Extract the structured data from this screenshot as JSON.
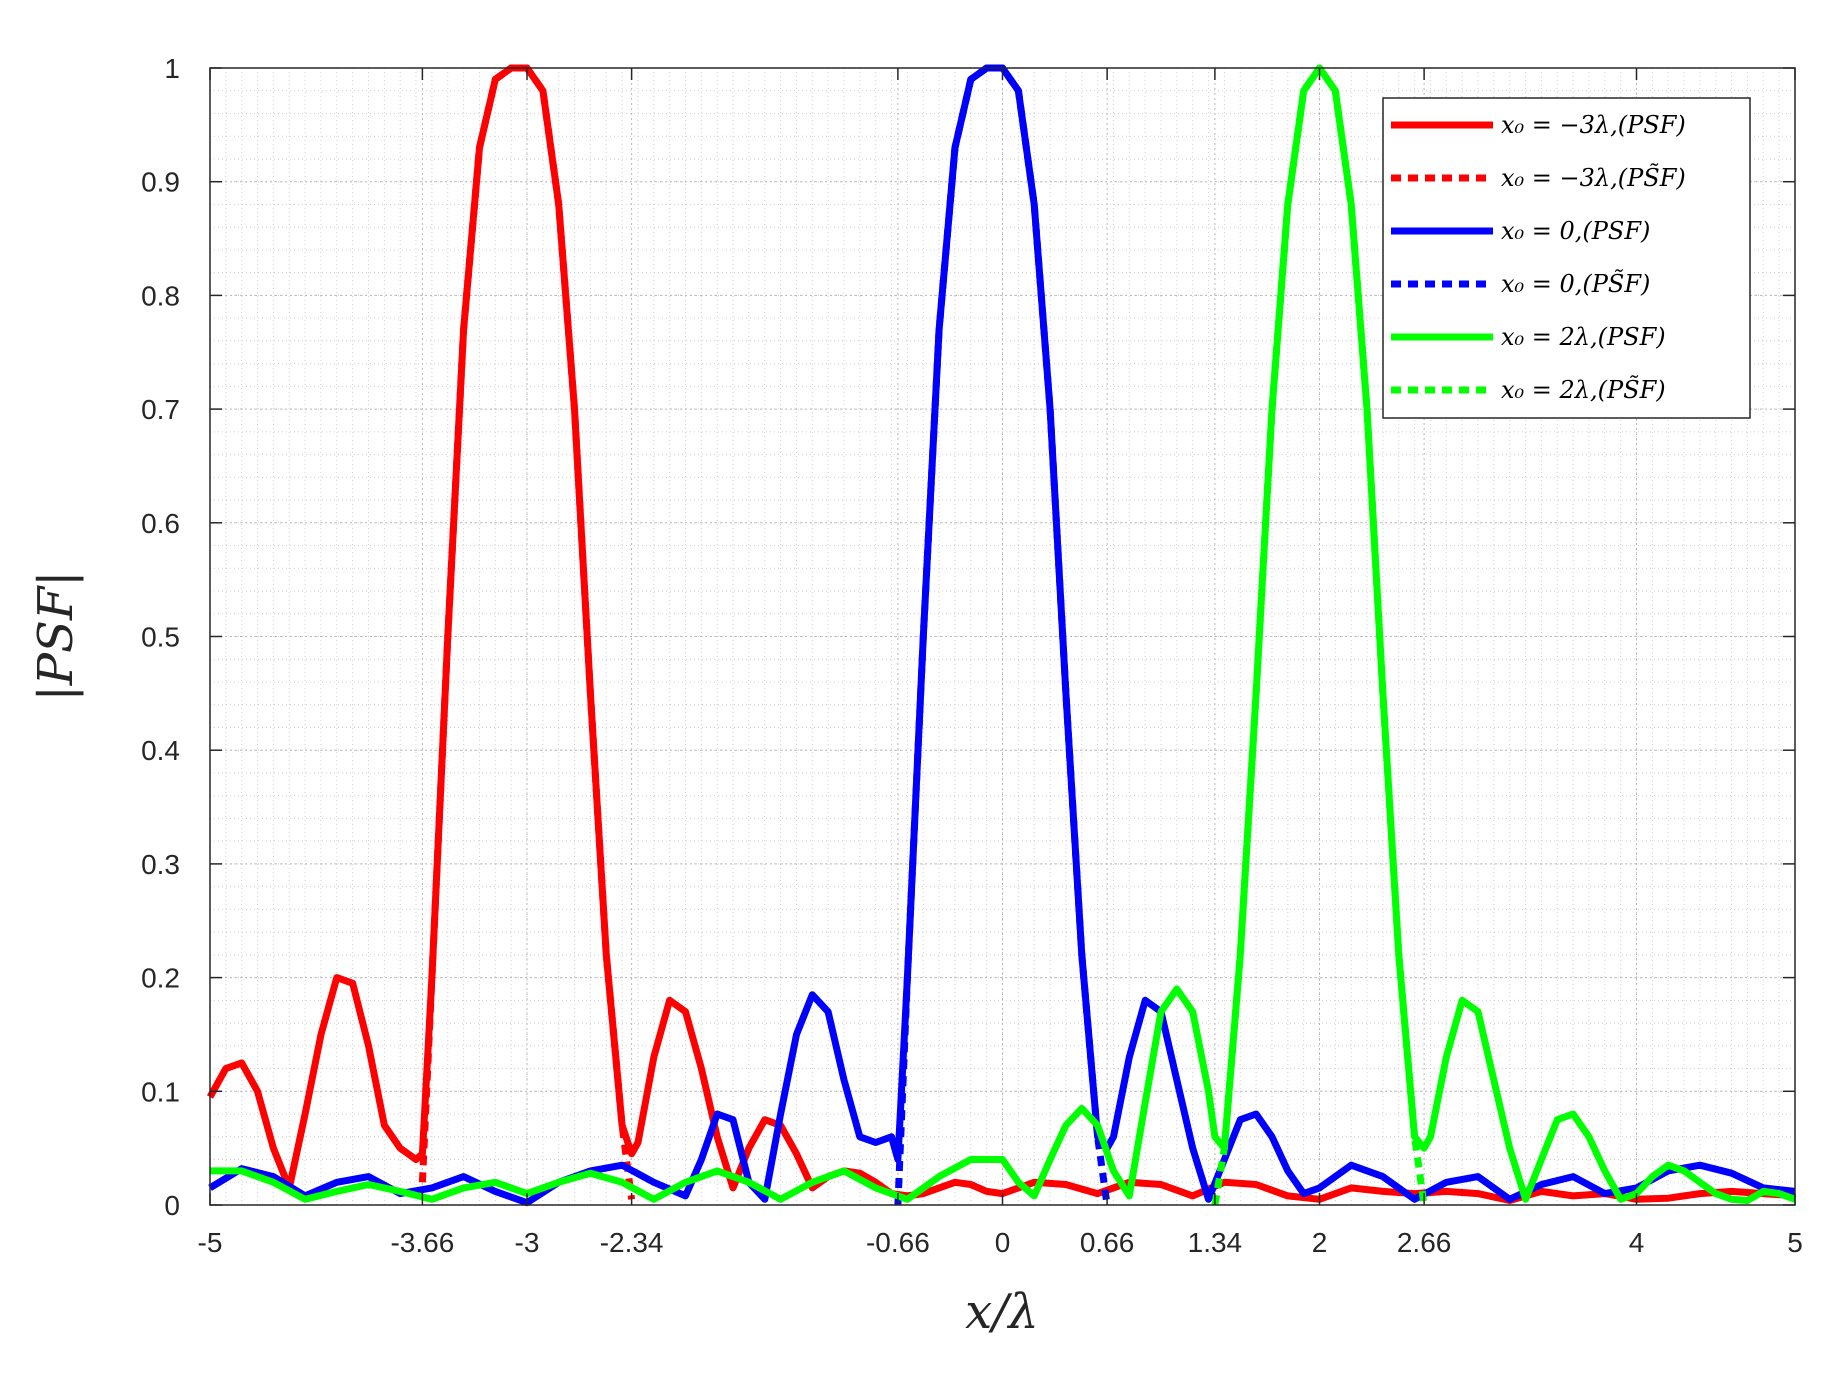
{
  "chart_data": {
    "type": "line",
    "xlabel": "x/λ",
    "ylabel": "|PSF|",
    "xlim": [
      -5,
      5
    ],
    "ylim": [
      0,
      1
    ],
    "grid": "on (major and minor)",
    "legend_position": "top-right",
    "x_ticks": [
      -5,
      -3.66,
      -3,
      -2.34,
      -0.66,
      0,
      0.66,
      1.34,
      2,
      2.66,
      4,
      5
    ],
    "x_tick_labels": [
      "-5",
      "-3.66",
      "-3",
      "-2.34",
      "-0.66",
      "0",
      "0.66",
      "1.34",
      "2",
      "2.66",
      "4",
      "5"
    ],
    "y_ticks": [
      0,
      0.1,
      0.2,
      0.3,
      0.4,
      0.5,
      0.6,
      0.7,
      0.8,
      0.9,
      1
    ],
    "y_tick_labels": [
      "0",
      "0.1",
      "0.2",
      "0.3",
      "0.4",
      "0.5",
      "0.6",
      "0.7",
      "0.8",
      "0.9",
      "1"
    ],
    "series": [
      {
        "name": "x₀ = −3λ,(PSF)",
        "color": "#ff0000",
        "style": "solid",
        "x": [
          -5,
          -4.9,
          -4.8,
          -4.7,
          -4.6,
          -4.5,
          -4.4,
          -4.3,
          -4.2,
          -4.1,
          -4.0,
          -3.9,
          -3.8,
          -3.7,
          -3.66,
          -3.6,
          -3.5,
          -3.4,
          -3.3,
          -3.2,
          -3.1,
          -3.0,
          -2.9,
          -2.8,
          -2.7,
          -2.6,
          -2.5,
          -2.4,
          -2.34,
          -2.3,
          -2.2,
          -2.1,
          -2.0,
          -1.9,
          -1.8,
          -1.7,
          -1.6,
          -1.5,
          -1.4,
          -1.3,
          -1.2,
          -1.1,
          -1.0,
          -0.9,
          -0.8,
          -0.7,
          -0.6,
          -0.5,
          -0.4,
          -0.3,
          -0.2,
          -0.1,
          0.0,
          0.2,
          0.4,
          0.6,
          0.8,
          1.0,
          1.2,
          1.4,
          1.6,
          1.8,
          2.0,
          2.2,
          2.4,
          2.6,
          2.8,
          3.0,
          3.2,
          3.4,
          3.6,
          3.8,
          4.0,
          4.2,
          4.4,
          4.6,
          4.8,
          5.0
        ],
        "y": [
          0.095,
          0.12,
          0.125,
          0.1,
          0.05,
          0.015,
          0.08,
          0.15,
          0.2,
          0.195,
          0.14,
          0.07,
          0.05,
          0.04,
          0.045,
          0.2,
          0.5,
          0.77,
          0.93,
          0.99,
          1.0,
          1.0,
          0.98,
          0.88,
          0.7,
          0.45,
          0.22,
          0.07,
          0.045,
          0.055,
          0.13,
          0.18,
          0.17,
          0.12,
          0.06,
          0.015,
          0.05,
          0.075,
          0.07,
          0.045,
          0.015,
          0.025,
          0.03,
          0.028,
          0.02,
          0.01,
          0.008,
          0.01,
          0.015,
          0.02,
          0.018,
          0.012,
          0.01,
          0.02,
          0.018,
          0.01,
          0.02,
          0.018,
          0.008,
          0.02,
          0.018,
          0.008,
          0.005,
          0.015,
          0.012,
          0.01,
          0.012,
          0.01,
          0.004,
          0.012,
          0.008,
          0.01,
          0.005,
          0.006,
          0.01,
          0.012,
          0.01,
          0.008
        ]
      },
      {
        "name": "x₀ = −3λ,(PS̃F)",
        "color": "#ff0000",
        "style": "dashed",
        "x": [
          -3.66,
          -3.6,
          -3.5,
          -3.4,
          -3.3,
          -3.2,
          -3.1,
          -3.0,
          -2.9,
          -2.8,
          -2.7,
          -2.6,
          -2.5,
          -2.4,
          -2.34
        ],
        "y": [
          0.02,
          0.2,
          0.5,
          0.77,
          0.93,
          0.99,
          1.0,
          1.0,
          0.98,
          0.88,
          0.7,
          0.45,
          0.22,
          0.07,
          0.005
        ]
      },
      {
        "name": "x₀ = 0,(PSF)",
        "color": "#0000ff",
        "style": "solid",
        "x": [
          -5,
          -4.8,
          -4.6,
          -4.4,
          -4.2,
          -4.0,
          -3.8,
          -3.6,
          -3.4,
          -3.2,
          -3.0,
          -2.8,
          -2.6,
          -2.4,
          -2.2,
          -2.0,
          -1.9,
          -1.8,
          -1.7,
          -1.6,
          -1.5,
          -1.4,
          -1.3,
          -1.2,
          -1.1,
          -1.0,
          -0.9,
          -0.8,
          -0.7,
          -0.66,
          -0.6,
          -0.5,
          -0.4,
          -0.3,
          -0.2,
          -0.1,
          0.0,
          0.1,
          0.2,
          0.3,
          0.4,
          0.5,
          0.6,
          0.66,
          0.7,
          0.8,
          0.9,
          1.0,
          1.1,
          1.2,
          1.3,
          1.4,
          1.5,
          1.6,
          1.7,
          1.8,
          1.9,
          2.0,
          2.2,
          2.4,
          2.6,
          2.8,
          3.0,
          3.2,
          3.4,
          3.6,
          3.8,
          4.0,
          4.2,
          4.4,
          4.6,
          4.8,
          5.0
        ],
        "y": [
          0.015,
          0.032,
          0.025,
          0.008,
          0.02,
          0.025,
          0.01,
          0.015,
          0.025,
          0.012,
          0.002,
          0.02,
          0.03,
          0.035,
          0.02,
          0.008,
          0.04,
          0.08,
          0.075,
          0.02,
          0.005,
          0.08,
          0.15,
          0.185,
          0.17,
          0.11,
          0.06,
          0.055,
          0.06,
          0.04,
          0.2,
          0.5,
          0.77,
          0.93,
          0.99,
          1.0,
          1.0,
          0.98,
          0.88,
          0.7,
          0.45,
          0.22,
          0.06,
          0.05,
          0.06,
          0.13,
          0.18,
          0.17,
          0.11,
          0.05,
          0.005,
          0.04,
          0.075,
          0.08,
          0.06,
          0.03,
          0.01,
          0.015,
          0.035,
          0.025,
          0.005,
          0.02,
          0.025,
          0.005,
          0.018,
          0.025,
          0.01,
          0.015,
          0.03,
          0.035,
          0.028,
          0.015,
          0.012
        ]
      },
      {
        "name": "x₀ = 0,(PS̃F)",
        "color": "#0000ff",
        "style": "dashed",
        "x": [
          -0.66,
          -0.6,
          -0.5,
          -0.4,
          -0.3,
          -0.2,
          -0.1,
          0.0,
          0.1,
          0.2,
          0.3,
          0.4,
          0.5,
          0.6,
          0.66
        ],
        "y": [
          0.0,
          0.2,
          0.5,
          0.77,
          0.93,
          0.99,
          1.0,
          1.0,
          0.98,
          0.88,
          0.7,
          0.45,
          0.22,
          0.06,
          0.0
        ]
      },
      {
        "name": "x₀ = 2λ,(PSF)",
        "color": "#00ff00",
        "style": "solid",
        "x": [
          -5,
          -4.8,
          -4.6,
          -4.4,
          -4.2,
          -4.0,
          -3.8,
          -3.6,
          -3.4,
          -3.2,
          -3.0,
          -2.8,
          -2.6,
          -2.4,
          -2.2,
          -2.0,
          -1.8,
          -1.6,
          -1.4,
          -1.2,
          -1.0,
          -0.8,
          -0.6,
          -0.4,
          -0.2,
          0.0,
          0.1,
          0.2,
          0.3,
          0.4,
          0.5,
          0.6,
          0.7,
          0.8,
          0.9,
          1.0,
          1.1,
          1.2,
          1.3,
          1.34,
          1.4,
          1.5,
          1.6,
          1.7,
          1.8,
          1.9,
          2.0,
          2.1,
          2.2,
          2.3,
          2.4,
          2.5,
          2.6,
          2.66,
          2.7,
          2.8,
          2.9,
          3.0,
          3.1,
          3.2,
          3.3,
          3.4,
          3.5,
          3.6,
          3.7,
          3.8,
          3.9,
          4.0,
          4.1,
          4.2,
          4.3,
          4.4,
          4.5,
          4.6,
          4.7,
          4.8,
          4.9,
          5.0
        ],
        "y": [
          0.03,
          0.03,
          0.02,
          0.005,
          0.012,
          0.018,
          0.012,
          0.005,
          0.015,
          0.02,
          0.01,
          0.02,
          0.028,
          0.02,
          0.005,
          0.02,
          0.03,
          0.02,
          0.005,
          0.02,
          0.03,
          0.015,
          0.005,
          0.025,
          0.04,
          0.04,
          0.02,
          0.008,
          0.04,
          0.07,
          0.085,
          0.07,
          0.03,
          0.008,
          0.09,
          0.17,
          0.19,
          0.17,
          0.1,
          0.06,
          0.05,
          0.22,
          0.45,
          0.7,
          0.88,
          0.98,
          1.0,
          0.98,
          0.88,
          0.7,
          0.45,
          0.22,
          0.06,
          0.05,
          0.06,
          0.13,
          0.18,
          0.17,
          0.11,
          0.05,
          0.005,
          0.04,
          0.075,
          0.08,
          0.06,
          0.03,
          0.005,
          0.01,
          0.025,
          0.035,
          0.03,
          0.02,
          0.01,
          0.005,
          0.004,
          0.012,
          0.01,
          0.005
        ]
      },
      {
        "name": "x₀ = 2λ,(PS̃F)",
        "color": "#00ff00",
        "style": "dashed",
        "x": [
          1.34,
          1.4,
          1.5,
          1.6,
          1.7,
          1.8,
          1.9,
          2.0,
          2.1,
          2.2,
          2.3,
          2.4,
          2.5,
          2.6,
          2.66
        ],
        "y": [
          0.0,
          0.05,
          0.22,
          0.45,
          0.7,
          0.88,
          0.98,
          1.0,
          0.98,
          0.88,
          0.7,
          0.45,
          0.22,
          0.06,
          0.0
        ]
      }
    ]
  }
}
